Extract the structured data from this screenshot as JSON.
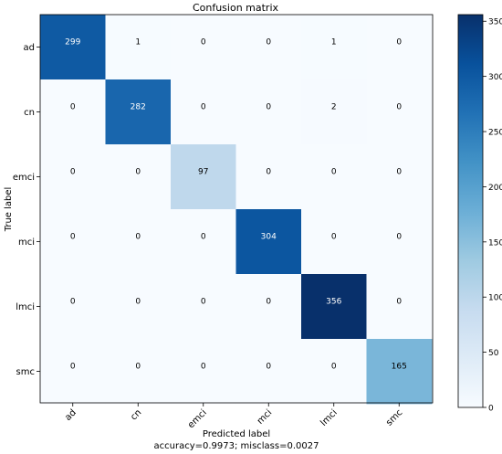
{
  "chart_data": {
    "type": "heatmap",
    "title": "Confusion matrix",
    "xlabel": "Predicted label",
    "xlabel_note": "accuracy=0.9973; misclass=0.0027",
    "ylabel": "True label",
    "x_categories": [
      "ad",
      "cn",
      "emci",
      "mci",
      "lmci",
      "smc"
    ],
    "y_categories": [
      "ad",
      "cn",
      "emci",
      "mci",
      "lmci",
      "smc"
    ],
    "values": [
      [
        299,
        1,
        0,
        0,
        1,
        0
      ],
      [
        0,
        282,
        0,
        0,
        2,
        0
      ],
      [
        0,
        0,
        97,
        0,
        0,
        0
      ],
      [
        0,
        0,
        0,
        304,
        0,
        0
      ],
      [
        0,
        0,
        0,
        0,
        356,
        0
      ],
      [
        0,
        0,
        0,
        0,
        0,
        165
      ]
    ],
    "colormap": "Blues",
    "colorbar": {
      "range": [
        0,
        356
      ],
      "ticks": [
        0,
        50,
        100,
        150,
        200,
        250,
        300,
        350
      ]
    }
  }
}
